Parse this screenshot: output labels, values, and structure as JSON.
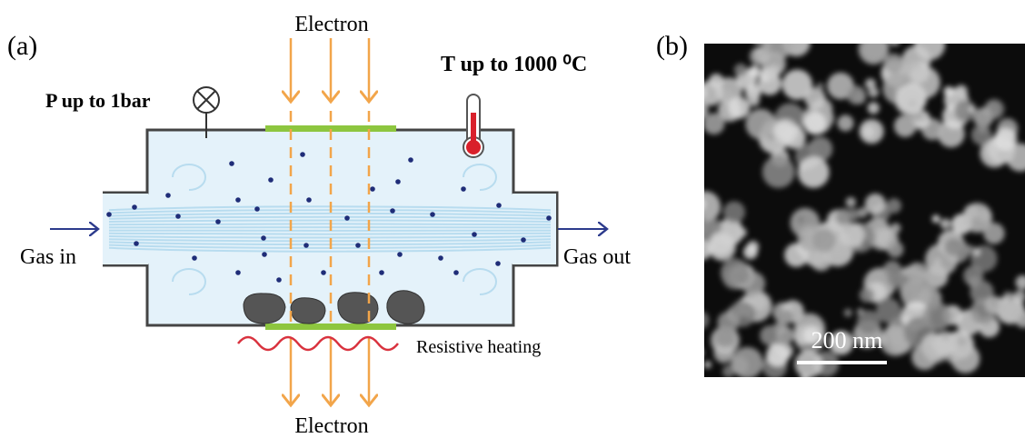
{
  "panel_a": {
    "label": "(a)",
    "electron_top": "Electron",
    "electron_bottom": "Electron",
    "pressure": "P up to 1bar",
    "temperature": "T up to 1000 ⁰C",
    "gas_in": "Gas in",
    "gas_out": "Gas out",
    "heating": "Resistive heating"
  },
  "panel_b": {
    "label": "(b)",
    "scale_bar": "200 nm"
  }
}
